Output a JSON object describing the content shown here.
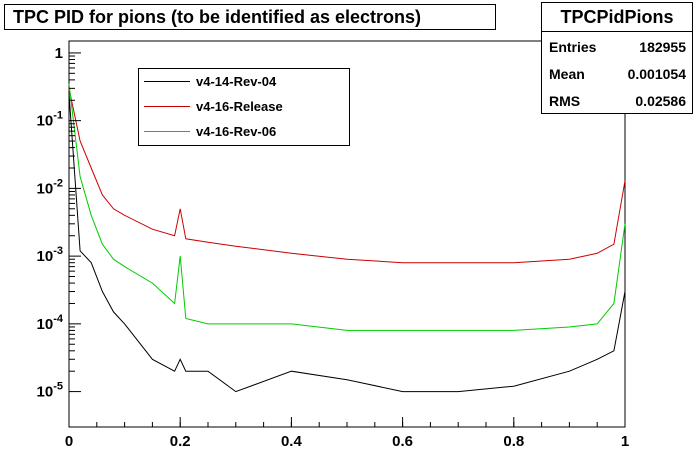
{
  "chart_data": {
    "type": "line",
    "title": "TPC PID for pions (to be identified as electrons)",
    "xlabel": "",
    "ylabel": "",
    "xlim": [
      0,
      1
    ],
    "ylim": [
      3e-06,
      1.5
    ],
    "yscale": "log",
    "x_ticks": [
      "0",
      "0.2",
      "0.4",
      "0.6",
      "0.8",
      "1"
    ],
    "y_ticks": [
      "1",
      "10-1",
      "10-2",
      "10-3",
      "10-4",
      "10-5"
    ],
    "x": [
      0.0,
      0.02,
      0.04,
      0.06,
      0.08,
      0.1,
      0.15,
      0.19,
      0.2,
      0.21,
      0.25,
      0.3,
      0.4,
      0.5,
      0.6,
      0.7,
      0.8,
      0.9,
      0.95,
      0.98,
      1.0
    ],
    "series": [
      {
        "name": "v4-14-Rev-04",
        "color": "#000000",
        "values": [
          0.25,
          0.0012,
          0.0008,
          0.0003,
          0.00015,
          0.0001,
          3e-05,
          2e-05,
          3e-05,
          2e-05,
          2e-05,
          1e-05,
          2e-05,
          1.5e-05,
          1e-05,
          1e-05,
          1.2e-05,
          2e-05,
          3e-05,
          4e-05,
          0.0003
        ]
      },
      {
        "name": "v4-16-Release",
        "color": "#cc0000",
        "values": [
          0.3,
          0.05,
          0.02,
          0.008,
          0.005,
          0.004,
          0.0025,
          0.002,
          0.005,
          0.0018,
          0.0016,
          0.0014,
          0.0011,
          0.0009,
          0.0008,
          0.0008,
          0.0008,
          0.0009,
          0.0011,
          0.0015,
          0.013
        ]
      },
      {
        "name": "v4-16-Rev-06",
        "color": "#00cc00",
        "values": [
          0.35,
          0.015,
          0.004,
          0.0015,
          0.0009,
          0.0007,
          0.0004,
          0.0002,
          0.001,
          0.00012,
          0.0001,
          0.0001,
          0.0001,
          8e-05,
          8e-05,
          8e-05,
          8e-05,
          9e-05,
          0.0001,
          0.0002,
          0.003
        ]
      }
    ]
  },
  "stats": {
    "title": "TPCPidPions",
    "rows": [
      {
        "label": "Entries",
        "value": "182955"
      },
      {
        "label": "Mean",
        "value": "0.001054"
      },
      {
        "label": "RMS",
        "value": "0.02586"
      }
    ]
  }
}
